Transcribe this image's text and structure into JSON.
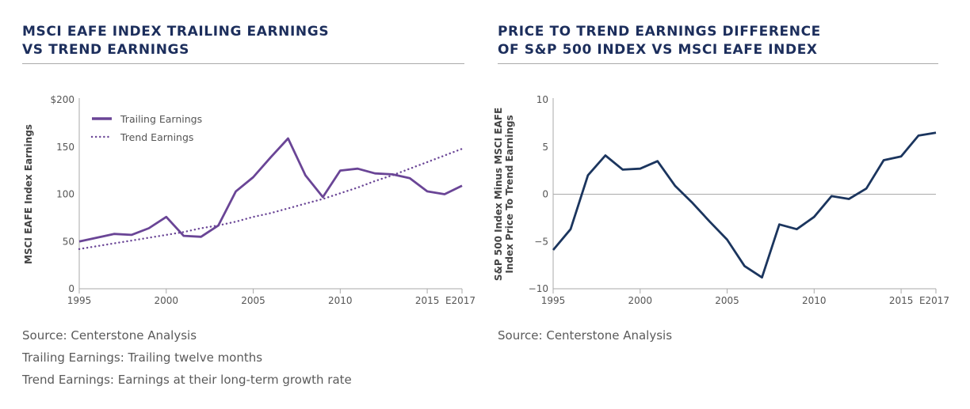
{
  "panels": [
    {
      "title": "MSCI EAFE INDEX TRAILING EARNINGS\nVS TREND EARNINGS",
      "notes": [
        "Source: Centerstone Analysis",
        "Trailing Earnings: Trailing twelve months",
        "Trend Earnings: Earnings at their long-term growth rate"
      ]
    },
    {
      "title": "PRICE TO TREND EARNINGS DIFFERENCE\nOF S&P 500 INDEX VS MSCI EAFE INDEX",
      "notes": [
        "Source: Centerstone Analysis"
      ]
    }
  ],
  "chart_data": [
    {
      "type": "line",
      "title": "MSCI EAFE INDEX TRAILING EARNINGS VS TREND EARNINGS",
      "xlabel": "",
      "ylabel": "MSCI EAFE Index Earnings",
      "x": [
        1995,
        1996,
        1997,
        1998,
        1999,
        2000,
        2001,
        2002,
        2003,
        2004,
        2005,
        2006,
        2007,
        2008,
        2009,
        2010,
        2011,
        2012,
        2013,
        2014,
        2015,
        2016,
        2017
      ],
      "xlim": [
        1995,
        2017
      ],
      "x_ticks": [
        1995,
        2000,
        2005,
        2010,
        2015,
        2017
      ],
      "x_tick_labels": [
        "1995",
        "2000",
        "2005",
        "2010",
        "2015",
        "E2017"
      ],
      "ylim": [
        0,
        200
      ],
      "y_ticks": [
        0,
        50,
        100,
        150,
        200
      ],
      "y_tick_labels": [
        "0",
        "50",
        "100",
        "150",
        "$200"
      ],
      "grid": false,
      "legend_position": "top-left",
      "series": [
        {
          "name": "Trailing Earnings",
          "style": "solid",
          "color": "#6a4596",
          "values": [
            50,
            54,
            58,
            57,
            64,
            76,
            56,
            55,
            67,
            103,
            118,
            139,
            159,
            120,
            97,
            125,
            127,
            122,
            121,
            117,
            103,
            100,
            109
          ]
        },
        {
          "name": "Trend Earnings",
          "style": "dotted",
          "color": "#6a4596",
          "values": [
            42,
            45,
            48,
            51,
            54,
            57,
            60,
            64,
            67,
            71,
            76,
            80,
            85,
            90,
            95,
            101,
            107,
            114,
            120,
            127,
            134,
            141,
            148
          ]
        }
      ]
    },
    {
      "type": "line",
      "title": "PRICE TO TREND EARNINGS DIFFERENCE OF S&P 500 INDEX VS MSCI EAFE INDEX",
      "xlabel": "",
      "ylabel": "S&P 500 Index Minus MSCI EAFE\nIndex Price To Trend Earnings",
      "x": [
        1995,
        1996,
        1997,
        1998,
        1999,
        2000,
        2001,
        2002,
        2003,
        2004,
        2005,
        2006,
        2007,
        2008,
        2009,
        2010,
        2011,
        2012,
        2013,
        2014,
        2015,
        2016,
        2017
      ],
      "xlim": [
        1995,
        2017
      ],
      "x_ticks": [
        1995,
        2000,
        2005,
        2010,
        2015,
        2017
      ],
      "x_tick_labels": [
        "1995",
        "2000",
        "2005",
        "2010",
        "2015",
        "E2017"
      ],
      "ylim": [
        -10,
        10
      ],
      "y_ticks": [
        -10,
        -5,
        0,
        5,
        10
      ],
      "y_tick_labels": [
        "−10",
        "−5",
        "0",
        "5",
        "10"
      ],
      "grid": false,
      "zero_line": true,
      "series": [
        {
          "name": "S&P 500 minus MSCI EAFE",
          "style": "solid",
          "color": "#1b355e",
          "values": [
            -5.9,
            -3.7,
            2.0,
            4.1,
            2.6,
            2.7,
            3.5,
            0.9,
            -0.9,
            -2.9,
            -4.8,
            -7.6,
            -8.8,
            -3.2,
            -3.7,
            -2.4,
            -0.2,
            -0.5,
            0.6,
            3.6,
            4.0,
            6.2,
            6.5
          ]
        }
      ]
    }
  ]
}
